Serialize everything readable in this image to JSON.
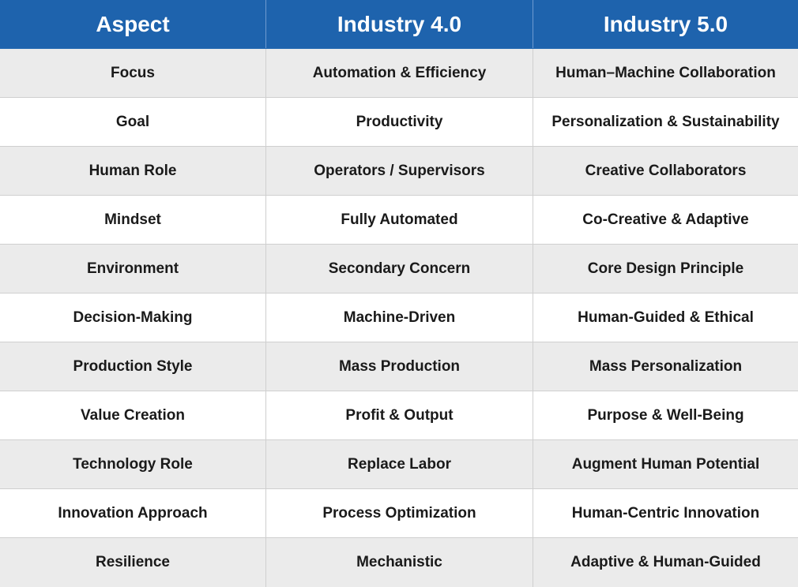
{
  "header": {
    "col1": "Aspect",
    "col2": "Industry 4.0",
    "col3": "Industry 5.0"
  },
  "rows": [
    {
      "aspect": "Focus",
      "i4": "Automation & Efficiency",
      "i5": "Human–Machine Collaboration"
    },
    {
      "aspect": "Goal",
      "i4": "Productivity",
      "i5": "Personalization & Sustainability"
    },
    {
      "aspect": "Human Role",
      "i4": "Operators / Supervisors",
      "i5": "Creative Collaborators"
    },
    {
      "aspect": "Mindset",
      "i4": "Fully Automated",
      "i5": "Co-Creative & Adaptive"
    },
    {
      "aspect": "Environment",
      "i4": "Secondary Concern",
      "i5": "Core Design Principle"
    },
    {
      "aspect": "Decision-Making",
      "i4": "Machine-Driven",
      "i5": "Human-Guided & Ethical"
    },
    {
      "aspect": "Production Style",
      "i4": "Mass Production",
      "i5": "Mass Personalization"
    },
    {
      "aspect": "Value Creation",
      "i4": "Profit & Output",
      "i5": "Purpose & Well-Being"
    },
    {
      "aspect": "Technology Role",
      "i4": "Replace Labor",
      "i5": "Augment Human Potential"
    },
    {
      "aspect": "Innovation Approach",
      "i4": "Process Optimization",
      "i5": "Human-Centric Innovation"
    },
    {
      "aspect": "Resilience",
      "i4": "Mechanistic",
      "i5": "Adaptive & Human-Guided"
    }
  ],
  "colors": {
    "header_bg": "#1e63ad",
    "header_text": "#ffffff",
    "row_alt_bg": "#ebebeb",
    "row_bg": "#ffffff"
  }
}
